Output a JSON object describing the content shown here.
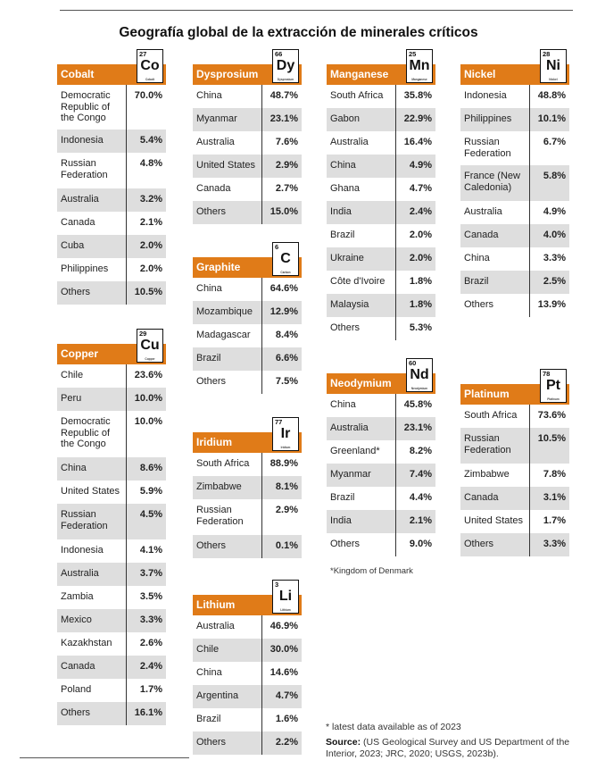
{
  "title": "Geografía global de la extracción de minerales críticos",
  "accent_color": "#e07b18",
  "alt_row_color": "#dedede",
  "tables": {
    "cobalt": {
      "mineral": "Cobalt",
      "number": "27",
      "symbol": "Co",
      "element_name": "Cobalt",
      "rows": [
        {
          "country": "Democratic Republic of the Congo",
          "pct": "70.0%"
        },
        {
          "country": "Indonesia",
          "pct": "5.4%"
        },
        {
          "country": "Russian Federation",
          "pct": "4.8%"
        },
        {
          "country": "Australia",
          "pct": "3.2%"
        },
        {
          "country": "Canada",
          "pct": "2.1%"
        },
        {
          "country": "Cuba",
          "pct": "2.0%"
        },
        {
          "country": "Philippines",
          "pct": "2.0%"
        },
        {
          "country": "Others",
          "pct": "10.5%"
        }
      ]
    },
    "copper": {
      "mineral": "Copper",
      "number": "29",
      "symbol": "Cu",
      "element_name": "Copper",
      "rows": [
        {
          "country": "Chile",
          "pct": "23.6%"
        },
        {
          "country": "Peru",
          "pct": "10.0%"
        },
        {
          "country": "Democratic Republic of the Congo",
          "pct": "10.0%"
        },
        {
          "country": "China",
          "pct": "8.6%"
        },
        {
          "country": "United States",
          "pct": "5.9%"
        },
        {
          "country": "Russian Federation",
          "pct": "4.5%"
        },
        {
          "country": "Indonesia",
          "pct": "4.1%"
        },
        {
          "country": "Australia",
          "pct": "3.7%"
        },
        {
          "country": "Zambia",
          "pct": "3.5%"
        },
        {
          "country": "Mexico",
          "pct": "3.3%"
        },
        {
          "country": "Kazakhstan",
          "pct": "2.6%"
        },
        {
          "country": "Canada",
          "pct": "2.4%"
        },
        {
          "country": "Poland",
          "pct": "1.7%"
        },
        {
          "country": "Others",
          "pct": "16.1%"
        }
      ]
    },
    "dysprosium": {
      "mineral": "Dysprosium",
      "number": "66",
      "symbol": "Dy",
      "element_name": "Dysprosium",
      "rows": [
        {
          "country": "China",
          "pct": "48.7%"
        },
        {
          "country": "Myanmar",
          "pct": "23.1%"
        },
        {
          "country": "Australia",
          "pct": "7.6%"
        },
        {
          "country": "United States",
          "pct": "2.9%"
        },
        {
          "country": "Canada",
          "pct": "2.7%"
        },
        {
          "country": "Others",
          "pct": "15.0%"
        }
      ]
    },
    "graphite": {
      "mineral": "Graphite",
      "number": "6",
      "symbol": "C",
      "element_name": "Carbon",
      "rows": [
        {
          "country": "China",
          "pct": "64.6%"
        },
        {
          "country": "Mozambique",
          "pct": "12.9%"
        },
        {
          "country": "Madagascar",
          "pct": "8.4%"
        },
        {
          "country": "Brazil",
          "pct": "6.6%"
        },
        {
          "country": "Others",
          "pct": "7.5%"
        }
      ]
    },
    "iridium": {
      "mineral": "Iridium",
      "number": "77",
      "symbol": "Ir",
      "element_name": "Iridium",
      "rows": [
        {
          "country": "South Africa",
          "pct": "88.9%"
        },
        {
          "country": "Zimbabwe",
          "pct": "8.1%"
        },
        {
          "country": "Russian Federation",
          "pct": "2.9%"
        },
        {
          "country": "Others",
          "pct": "0.1%"
        }
      ]
    },
    "lithium": {
      "mineral": "Lithium",
      "number": "3",
      "symbol": "Li",
      "element_name": "Lithium",
      "rows": [
        {
          "country": "Australia",
          "pct": "46.9%"
        },
        {
          "country": "Chile",
          "pct": "30.0%"
        },
        {
          "country": "China",
          "pct": "14.6%"
        },
        {
          "country": "Argentina",
          "pct": "4.7%"
        },
        {
          "country": "Brazil",
          "pct": "1.6%"
        },
        {
          "country": "Others",
          "pct": "2.2%"
        }
      ]
    },
    "manganese": {
      "mineral": "Manganese",
      "number": "25",
      "symbol": "Mn",
      "element_name": "Manganese",
      "rows": [
        {
          "country": "South Africa",
          "pct": "35.8%"
        },
        {
          "country": "Gabon",
          "pct": "22.9%"
        },
        {
          "country": "Australia",
          "pct": "16.4%"
        },
        {
          "country": "China",
          "pct": "4.9%"
        },
        {
          "country": "Ghana",
          "pct": "4.7%"
        },
        {
          "country": "India",
          "pct": "2.4%"
        },
        {
          "country": "Brazil",
          "pct": "2.0%"
        },
        {
          "country": "Ukraine",
          "pct": "2.0%"
        },
        {
          "country": "Côte d'Ivoire",
          "pct": "1.8%"
        },
        {
          "country": "Malaysia",
          "pct": "1.8%"
        },
        {
          "country": "Others",
          "pct": "5.3%"
        }
      ]
    },
    "neodymium": {
      "mineral": "Neodymium",
      "number": "60",
      "symbol": "Nd",
      "element_name": "Neodymium",
      "rows": [
        {
          "country": "China",
          "pct": "45.8%"
        },
        {
          "country": "Australia",
          "pct": "23.1%"
        },
        {
          "country": "Greenland*",
          "pct": "8.2%"
        },
        {
          "country": "Myanmar",
          "pct": "7.4%"
        },
        {
          "country": "Brazil",
          "pct": "4.4%"
        },
        {
          "country": "India",
          "pct": "2.1%"
        },
        {
          "country": "Others",
          "pct": "9.0%"
        }
      ]
    },
    "nickel": {
      "mineral": "Nickel",
      "number": "28",
      "symbol": "Ni",
      "element_name": "Nickel",
      "rows": [
        {
          "country": "Indonesia",
          "pct": "48.8%"
        },
        {
          "country": "Philippines",
          "pct": "10.1%"
        },
        {
          "country": "Russian Federation",
          "pct": "6.7%"
        },
        {
          "country": "France (New Caledonia)",
          "pct": "5.8%"
        },
        {
          "country": "Australia",
          "pct": "4.9%"
        },
        {
          "country": "Canada",
          "pct": "4.0%"
        },
        {
          "country": "China",
          "pct": "3.3%"
        },
        {
          "country": "Brazil",
          "pct": "2.5%"
        },
        {
          "country": "Others",
          "pct": "13.9%"
        }
      ]
    },
    "platinum": {
      "mineral": "Platinum",
      "number": "78",
      "symbol": "Pt",
      "element_name": "Platinum",
      "rows": [
        {
          "country": "South Africa",
          "pct": "73.6%"
        },
        {
          "country": "Russian Federation",
          "pct": "10.5%"
        },
        {
          "country": "Zimbabwe",
          "pct": "7.8%"
        },
        {
          "country": "Canada",
          "pct": "3.1%"
        },
        {
          "country": "United States",
          "pct": "1.7%"
        },
        {
          "country": "Others",
          "pct": "3.3%"
        }
      ]
    }
  },
  "greenland_note": "*Kingdom of Denmark",
  "latest_note": "* latest data available as of 2023",
  "source_label": "Source:",
  "source_text": "(US Geological Survey and US Department of the Interior, 2023; JRC, 2020; USGS, 2023b)."
}
